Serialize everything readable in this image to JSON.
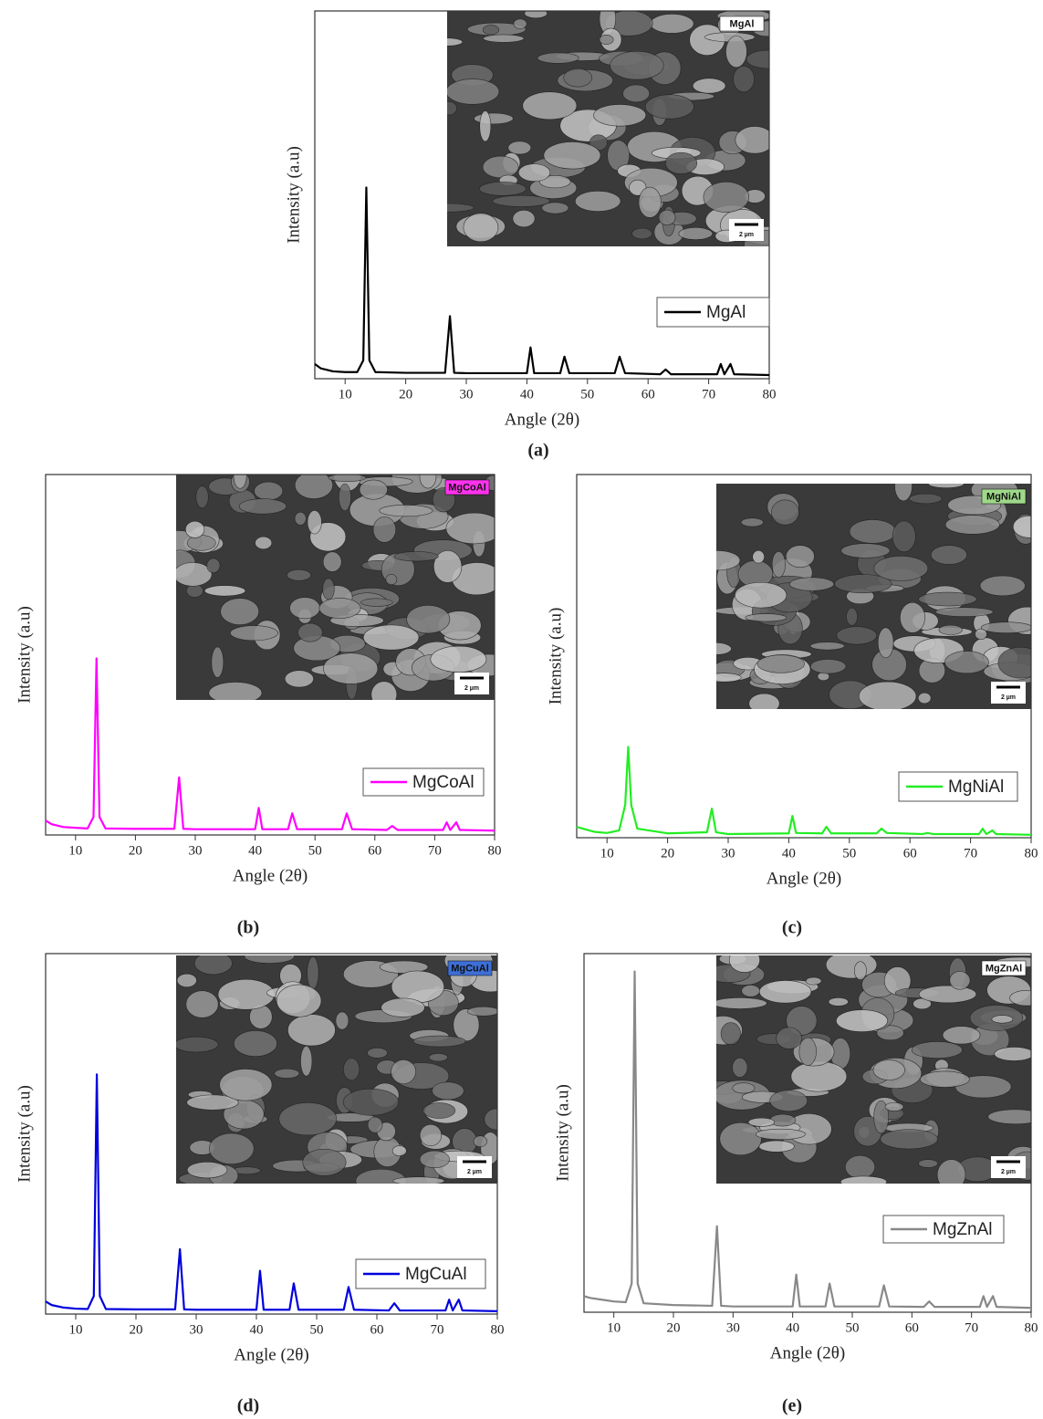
{
  "chart_data": [
    {
      "type": "line",
      "panel_label": "(a)",
      "xlabel": "Angle (2θ)",
      "ylabel": "Intensity (a.u)",
      "xlim": [
        5,
        80
      ],
      "ylim": [
        0,
        100
      ],
      "xticks": [
        10,
        20,
        30,
        40,
        50,
        60,
        70,
        80
      ],
      "legend": "right",
      "inset": {
        "label": "MgAl",
        "scale": "2 µm",
        "label_color": "#ffffff"
      },
      "x": [
        5,
        6,
        8,
        10,
        12,
        13,
        13.5,
        14,
        15,
        20,
        26.5,
        27.3,
        28,
        30,
        40,
        40.6,
        41.2,
        45.5,
        46.2,
        47,
        54.5,
        55.3,
        56.2,
        62,
        62.9,
        63.8,
        71.4,
        72,
        72.6,
        73.6,
        74.2,
        80
      ],
      "series": [
        {
          "name": "MgAl",
          "color": "#000000",
          "values": [
            4,
            2.8,
            2,
            1.8,
            1.8,
            5,
            52,
            5,
            1.8,
            1.6,
            1.6,
            17,
            1.6,
            1.5,
            1.5,
            8.5,
            1.5,
            1.5,
            6,
            1.5,
            1.5,
            6,
            1.5,
            1.2,
            2.5,
            1.2,
            1.2,
            4,
            1.2,
            4,
            1.2,
            1
          ]
        }
      ]
    },
    {
      "type": "line",
      "panel_label": "(b)",
      "xlabel": "Angle (2θ)",
      "ylabel": "Intensity (a.u)",
      "xlim": [
        5,
        80
      ],
      "ylim": [
        0,
        100
      ],
      "xticks": [
        10,
        20,
        30,
        40,
        50,
        60,
        70,
        80
      ],
      "legend": "right",
      "inset": {
        "label": "MgCoAl",
        "scale": "2 µm",
        "label_color": "#ff33ee"
      },
      "x": [
        5,
        6,
        8,
        10,
        12,
        13,
        13.5,
        14,
        15,
        20,
        26.5,
        27.3,
        28,
        30,
        40,
        40.6,
        41.2,
        45.5,
        46.2,
        47,
        54.5,
        55.3,
        56.2,
        62,
        62.9,
        63.8,
        71.4,
        72,
        72.6,
        73.6,
        74.2,
        80
      ],
      "series": [
        {
          "name": "MgCoAl",
          "color": "#ff00ff",
          "values": [
            4,
            3,
            2.2,
            2,
            1.8,
            5,
            49,
            5,
            1.8,
            1.7,
            1.7,
            16,
            1.7,
            1.6,
            1.6,
            7.5,
            1.6,
            1.6,
            6,
            1.6,
            1.6,
            6,
            1.6,
            1.4,
            2.5,
            1.4,
            1.4,
            3.5,
            1.4,
            3.5,
            1.4,
            1.2
          ]
        }
      ]
    },
    {
      "type": "line",
      "panel_label": "(c)",
      "xlabel": "Angle (2θ)",
      "ylabel": "Intensity (a.u)",
      "xlim": [
        5,
        80
      ],
      "ylim": [
        0,
        100
      ],
      "xticks": [
        10,
        20,
        30,
        40,
        50,
        60,
        70,
        80
      ],
      "legend": "right",
      "inset": {
        "label": "MgNiAl",
        "scale": "2 µm",
        "label_color": "#9fd88a"
      },
      "x": [
        5,
        6,
        8,
        10,
        12,
        13,
        13.5,
        14,
        15,
        20,
        26.5,
        27.3,
        28,
        30,
        40,
        40.6,
        41.2,
        45.5,
        46.2,
        47,
        54.5,
        55.3,
        56.2,
        62,
        62.9,
        63.8,
        71.4,
        72,
        72.6,
        73.6,
        74.2,
        80
      ],
      "series": [
        {
          "name": "MgNiAl",
          "color": "#22ee22",
          "values": [
            3,
            2.5,
            1.6,
            1.3,
            2,
            9,
            25,
            9,
            2.5,
            1.2,
            1.5,
            8,
            1.5,
            1,
            1.2,
            6,
            1.3,
            1.2,
            3,
            1.2,
            1.2,
            2.5,
            1.3,
            1,
            1.3,
            1,
            1,
            2.5,
            1,
            2,
            1,
            0.8
          ]
        }
      ]
    },
    {
      "type": "line",
      "panel_label": "(d)",
      "xlabel": "Angle (2θ)",
      "ylabel": "Intensity (a.u)",
      "xlim": [
        5,
        80
      ],
      "ylim": [
        0,
        100
      ],
      "xticks": [
        10,
        20,
        30,
        40,
        50,
        60,
        70,
        80
      ],
      "legend": "right",
      "inset": {
        "label": "MgCuAl",
        "scale": "2 µm",
        "label_color": "#3d6fd6"
      },
      "x": [
        5,
        6,
        8,
        10,
        12,
        13,
        13.5,
        14,
        15,
        20,
        26.5,
        27.3,
        28,
        30,
        40,
        40.6,
        41.2,
        45.5,
        46.2,
        47,
        54.5,
        55.3,
        56.2,
        62,
        62.9,
        63.8,
        71.4,
        72,
        72.6,
        73.6,
        74.2,
        80
      ],
      "series": [
        {
          "name": "MgCuAl",
          "color": "#0000dd",
          "values": [
            3.5,
            2.5,
            1.8,
            1.5,
            1.4,
            5,
            66.5,
            5,
            1.4,
            1.3,
            1.3,
            18,
            1.3,
            1.2,
            1.2,
            12,
            1.2,
            1.2,
            8.5,
            1.2,
            1.2,
            7.5,
            1.2,
            1,
            3,
            1,
            1,
            4,
            1,
            4,
            1,
            0.8
          ]
        }
      ]
    },
    {
      "type": "line",
      "panel_label": "(e)",
      "xlabel": "Angle (2θ)",
      "ylabel": "Intensity (a.u)",
      "xlim": [
        5,
        80
      ],
      "ylim": [
        0,
        100
      ],
      "xticks": [
        10,
        20,
        30,
        40,
        50,
        60,
        70,
        80
      ],
      "legend": "right",
      "inset": {
        "label": "MgZnAl",
        "scale": "2 µm",
        "label_color": "#ffffff"
      },
      "x": [
        5,
        6,
        8,
        10,
        12,
        13,
        13.5,
        14,
        15,
        20,
        26.5,
        27.3,
        28,
        30,
        40,
        40.6,
        41.2,
        45.5,
        46.2,
        47,
        54.5,
        55.3,
        56.2,
        62,
        62.9,
        63.8,
        71.4,
        72,
        72.6,
        73.6,
        74.2,
        80
      ],
      "series": [
        {
          "name": "MgZnAl",
          "color": "#888888",
          "values": [
            4.5,
            4,
            3.5,
            3,
            2.8,
            8,
            95,
            8,
            2.5,
            2,
            1.8,
            24,
            1.8,
            1.6,
            1.6,
            10.5,
            1.6,
            1.6,
            8,
            1.6,
            1.6,
            7.5,
            1.6,
            1.5,
            3,
            1.5,
            1.5,
            4.5,
            1.5,
            4.5,
            1.5,
            1.2
          ]
        }
      ]
    }
  ]
}
